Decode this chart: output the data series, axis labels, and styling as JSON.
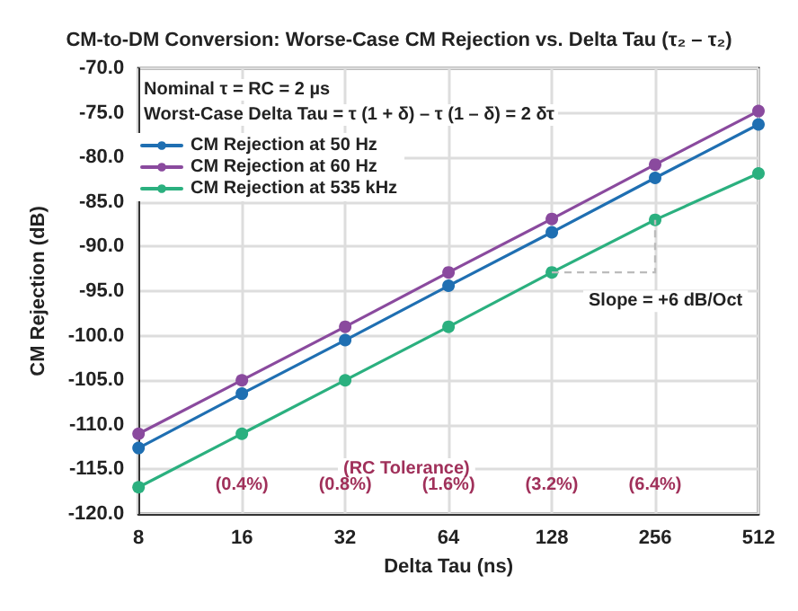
{
  "chart_data": {
    "type": "line",
    "title": "CM-to-DM Conversion: Worse-Case CM Rejection vs. Delta Tau (τ₂ – τ₂)",
    "xlabel": "Delta Tau (ns)",
    "ylabel": "CM Rejection (dB)",
    "categories": [
      "8",
      "16",
      "32",
      "64",
      "128",
      "256",
      "512"
    ],
    "series": [
      {
        "name": "CM Rejection at 50 Hz",
        "color": "#1f6fb2",
        "values": [
          -112.6,
          -106.5,
          -100.5,
          -94.4,
          -88.4,
          -82.3,
          -76.3
        ]
      },
      {
        "name": "CM Rejection at 60 Hz",
        "color": "#8a4a9e",
        "values": [
          -111.0,
          -105.0,
          -99.0,
          -92.9,
          -86.9,
          -80.8,
          -74.8
        ]
      },
      {
        "name": "CM Rejection at 535 kHz",
        "color": "#2bb07f",
        "values": [
          -117.0,
          -111.0,
          -105.0,
          -99.0,
          -92.9,
          -87.0,
          -81.8
        ]
      }
    ],
    "ylim": [
      -120,
      -70
    ],
    "yticks": [
      {
        "value": -120,
        "label": "-120.0"
      },
      {
        "value": -115,
        "label": "-115.0"
      },
      {
        "value": -110,
        "label": "-110.0"
      },
      {
        "value": -105,
        "label": "-105.0"
      },
      {
        "value": -100,
        "label": "-100.0"
      },
      {
        "value": -95,
        "label": "-95.0"
      },
      {
        "value": -90,
        "label": "-90.0"
      },
      {
        "value": -85,
        "label": "-85.0"
      },
      {
        "value": -80,
        "label": "-80.0"
      },
      {
        "value": -75,
        "label": "-75.0"
      },
      {
        "value": -70,
        "label": "-70.0"
      }
    ],
    "annotations": [
      "Nominal τ = RC = 2 µs",
      "Worst-Case Delta Tau = τ (1 + δ) – τ (1 – δ) = 2 δτ",
      "(RC Tolerance)",
      "Slope = +6 dB/Oct",
      "(0.4%)",
      "(0.8%)",
      "(1.6%)",
      "(3.2%)",
      "(6.4%)"
    ],
    "grid": true,
    "legend": "top left",
    "marker": "circle",
    "line_style": "solid"
  }
}
